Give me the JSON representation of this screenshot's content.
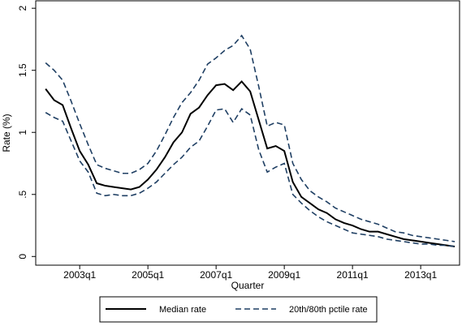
{
  "chart_data": {
    "type": "line",
    "x_label": "Quarter",
    "y_label": "Rate (%)",
    "x": [
      2002,
      2002.25,
      2002.5,
      2002.75,
      2003,
      2003.25,
      2003.5,
      2003.75,
      2004,
      2004.25,
      2004.5,
      2004.75,
      2005,
      2005.25,
      2005.5,
      2005.75,
      2006,
      2006.25,
      2006.5,
      2006.75,
      2007,
      2007.25,
      2007.5,
      2007.75,
      2008,
      2008.25,
      2008.5,
      2008.75,
      2009,
      2009.25,
      2009.5,
      2009.75,
      2010,
      2010.25,
      2010.5,
      2010.75,
      2011,
      2011.25,
      2011.5,
      2011.75,
      2012,
      2012.25,
      2012.5,
      2012.75,
      2013,
      2013.25,
      2013.5,
      2013.75,
      2014
    ],
    "xlim": [
      2001.71,
      2014.14
    ],
    "xticks": [
      {
        "value": 2003,
        "label": "2003q1"
      },
      {
        "value": 2005,
        "label": "2005q1"
      },
      {
        "value": 2007,
        "label": "2007q1"
      },
      {
        "value": 2009,
        "label": "2009q1"
      },
      {
        "value": 2011,
        "label": "2011q1"
      },
      {
        "value": 2013,
        "label": "2013q1"
      }
    ],
    "ylim": [
      -0.07,
      2.06
    ],
    "yticks": [
      0,
      {
        "value": 0.5,
        "label": ".5"
      },
      1,
      1.5,
      2
    ],
    "series": [
      {
        "name": "Median rate",
        "color": "#000000",
        "dashed": false,
        "values": [
          1.35,
          1.26,
          1.22,
          1.03,
          0.85,
          0.74,
          0.59,
          0.57,
          0.56,
          0.55,
          0.54,
          0.56,
          0.62,
          0.7,
          0.8,
          0.92,
          1.0,
          1.15,
          1.2,
          1.3,
          1.38,
          1.39,
          1.34,
          1.41,
          1.33,
          1.1,
          0.87,
          0.89,
          0.85,
          0.6,
          0.48,
          0.43,
          0.38,
          0.35,
          0.3,
          0.27,
          0.25,
          0.22,
          0.2,
          0.2,
          0.18,
          0.16,
          0.14,
          0.13,
          0.12,
          0.11,
          0.1,
          0.09,
          0.08
        ]
      },
      {
        "name": "20th/80th pctile rate",
        "color": "#1f3f63",
        "dashed": true,
        "lower": [
          1.16,
          1.12,
          1.09,
          0.93,
          0.77,
          0.68,
          0.51,
          0.49,
          0.5,
          0.49,
          0.49,
          0.51,
          0.55,
          0.6,
          0.67,
          0.74,
          0.8,
          0.88,
          0.93,
          1.05,
          1.18,
          1.19,
          1.08,
          1.19,
          1.14,
          0.86,
          0.68,
          0.72,
          0.75,
          0.5,
          0.43,
          0.37,
          0.32,
          0.28,
          0.25,
          0.22,
          0.19,
          0.18,
          0.17,
          0.16,
          0.14,
          0.13,
          0.12,
          0.11,
          0.1,
          0.1,
          0.09,
          0.09,
          0.08
        ],
        "upper": [
          1.56,
          1.5,
          1.42,
          1.25,
          1.07,
          0.9,
          0.74,
          0.71,
          0.69,
          0.67,
          0.67,
          0.7,
          0.75,
          0.85,
          0.98,
          1.12,
          1.24,
          1.32,
          1.42,
          1.55,
          1.6,
          1.66,
          1.7,
          1.78,
          1.67,
          1.37,
          1.05,
          1.08,
          1.06,
          0.75,
          0.62,
          0.53,
          0.48,
          0.44,
          0.39,
          0.36,
          0.33,
          0.3,
          0.28,
          0.26,
          0.23,
          0.2,
          0.19,
          0.17,
          0.16,
          0.15,
          0.14,
          0.13,
          0.12
        ]
      }
    ]
  }
}
